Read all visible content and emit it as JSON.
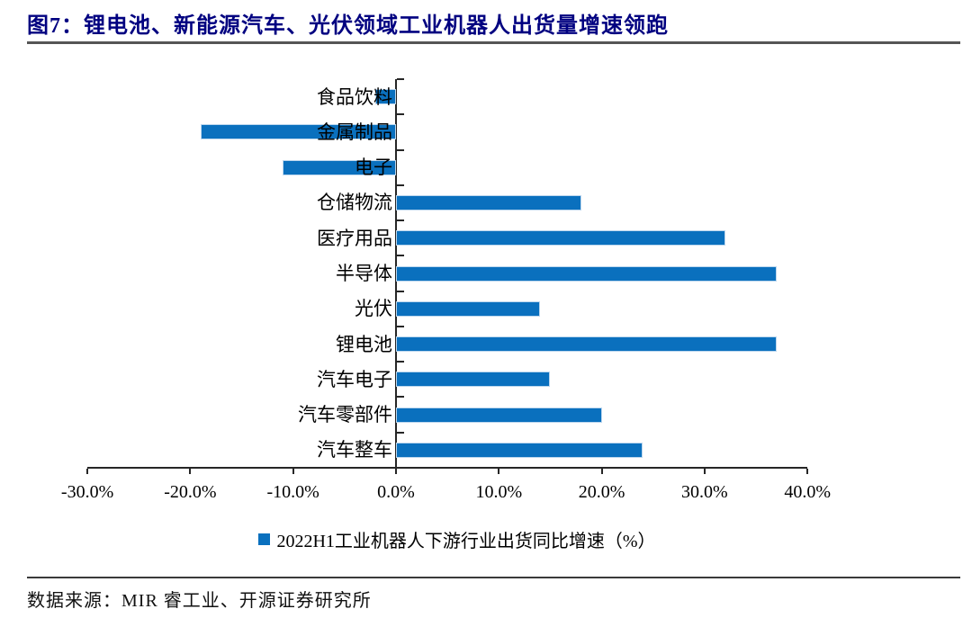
{
  "title": "图7：锂电池、新能源汽车、光伏领域工业机器人出货量增速领跑",
  "colors": {
    "bar": "#0a70be",
    "bar_border": "#bdd7ee",
    "title": "#000080",
    "axis": "#262626"
  },
  "legend": {
    "label": "2022H1工业机器人下游行业出货同比增速（%）"
  },
  "footer": {
    "source_text": "数据来源：MIR 睿工业、开源证券研究所"
  },
  "chart_data": {
    "type": "bar",
    "orientation": "horizontal",
    "title": "2022H1工业机器人下游行业出货同比增速（%）",
    "categories": [
      "食品饮料",
      "金属制品",
      "电子",
      "仓储物流",
      "医疗用品",
      "半导体",
      "光伏",
      "锂电池",
      "汽车电子",
      "汽车零部件",
      "汽车整车"
    ],
    "values": [
      -2.0,
      -19.0,
      -11.0,
      18.0,
      32.0,
      37.0,
      14.0,
      37.0,
      15.0,
      20.0,
      24.0
    ],
    "series": [
      {
        "name": "2022H1工业机器人下游行业出货同比增速（%）",
        "values": [
          -2.0,
          -19.0,
          -11.0,
          18.0,
          32.0,
          37.0,
          14.0,
          37.0,
          15.0,
          20.0,
          24.0
        ]
      }
    ],
    "xlim": [
      -30,
      40
    ],
    "x_ticks": [
      -30,
      -20,
      -10,
      0,
      10,
      20,
      30,
      40
    ],
    "x_tick_labels": [
      "-30.0%",
      "-20.0%",
      "-10.0%",
      "0.0%",
      "10.0%",
      "20.0%",
      "30.0%",
      "40.0%"
    ],
    "grid": false,
    "legend_position": "bottom"
  }
}
